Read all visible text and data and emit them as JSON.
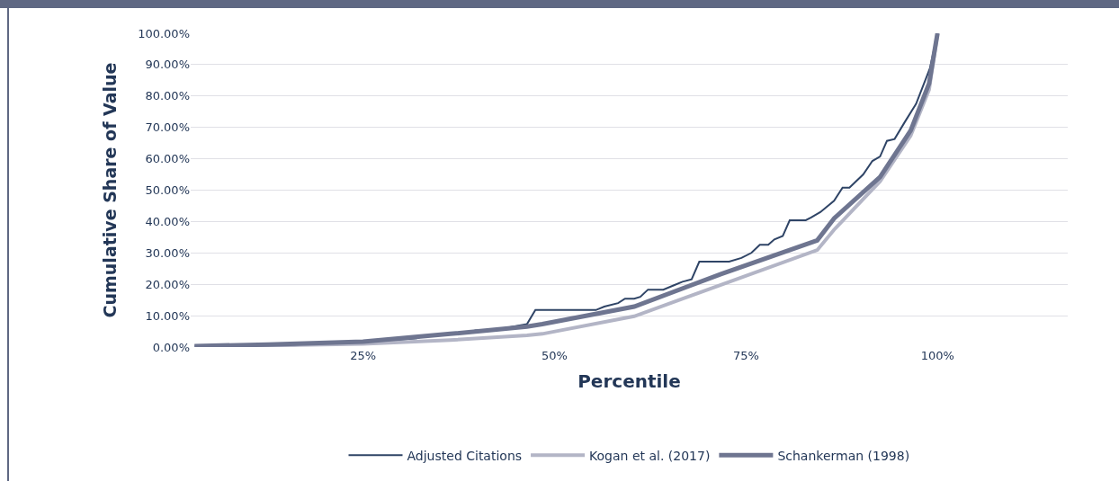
{
  "chart_data": {
    "type": "line",
    "xlabel": "Percentile",
    "ylabel": "Cumulative Share of Value",
    "xlim": [
      2.5,
      117
    ],
    "xticks": [
      {
        "value": 25,
        "label": "25%"
      },
      {
        "value": 50,
        "label": "50%"
      },
      {
        "value": 75,
        "label": "75%"
      },
      {
        "value": 100,
        "label": "100%"
      }
    ],
    "ylim": [
      0,
      100
    ],
    "yticks": [
      {
        "value": 0,
        "label": "0.00%"
      },
      {
        "value": 10,
        "label": "10.00%"
      },
      {
        "value": 20,
        "label": "20.00%"
      },
      {
        "value": 30,
        "label": "30.00%"
      },
      {
        "value": 40,
        "label": "40.00%"
      },
      {
        "value": 50,
        "label": "50.00%"
      },
      {
        "value": 60,
        "label": "60.00%"
      },
      {
        "value": 70,
        "label": "70.00%"
      },
      {
        "value": 80,
        "label": "80.00%"
      },
      {
        "value": 90,
        "label": "90.00%"
      },
      {
        "value": 100,
        "label": "100.00%"
      }
    ],
    "grid": "y",
    "legend": "bottom",
    "marker": "none",
    "line_style": "solid",
    "series": [
      {
        "name": "Adjusted Citations",
        "color": "#2f4466",
        "x": [
          3,
          16,
          26.6,
          32,
          33,
          38.5,
          39.7,
          42.5,
          46.4,
          47.5,
          55.4,
          56.5,
          58.3,
          59.2,
          60.4,
          61.2,
          62.2,
          64.2,
          65.6,
          66.7,
          67.9,
          68.9,
          72.8,
          74.4,
          75.7,
          76.8,
          77.9,
          78.7,
          79.8,
          80.7,
          82.8,
          83.5,
          84.7,
          86.5,
          87.6,
          88.5,
          90.3,
          91.5,
          92.5,
          93.4,
          94.4,
          95.7,
          97.2,
          99,
          100
        ],
        "values": [
          0.3,
          0.5,
          1.7,
          2.8,
          3.6,
          4.5,
          5.3,
          5.6,
          7.3,
          11.8,
          11.8,
          12.9,
          14,
          15.4,
          15.4,
          16,
          18.3,
          18.3,
          19.7,
          20.8,
          21.6,
          27.2,
          27.2,
          28.4,
          30,
          32.6,
          32.6,
          34.3,
          35.4,
          40.4,
          40.4,
          41.3,
          43,
          46.6,
          50.8,
          50.8,
          55,
          59.3,
          60.7,
          65.7,
          66.3,
          71.6,
          77.5,
          88.8,
          100
        ]
      },
      {
        "name": "Kogan et al. (2017)",
        "color": "#b3b5c6",
        "x": [
          3,
          12.6,
          25,
          36.4,
          46.4,
          48.4,
          60.4,
          71.8,
          84.3,
          86.5,
          92.5,
          96.5,
          98.9,
          100
        ],
        "values": [
          0.2,
          0.5,
          1,
          2.2,
          3.7,
          4.2,
          9.8,
          19.9,
          30.9,
          37.4,
          52.8,
          67.4,
          82,
          100
        ]
      },
      {
        "name": "Schankerman (1998)",
        "color": "#6e7590",
        "x": [
          3,
          12.6,
          25,
          36.4,
          46.4,
          48.4,
          60.4,
          71.8,
          84.3,
          86.5,
          92.5,
          96.5,
          98.9,
          100
        ],
        "values": [
          0.3,
          0.8,
          1.7,
          4.2,
          6.5,
          7.3,
          12.9,
          23.3,
          34,
          41,
          54.2,
          69,
          84,
          100
        ]
      }
    ]
  }
}
